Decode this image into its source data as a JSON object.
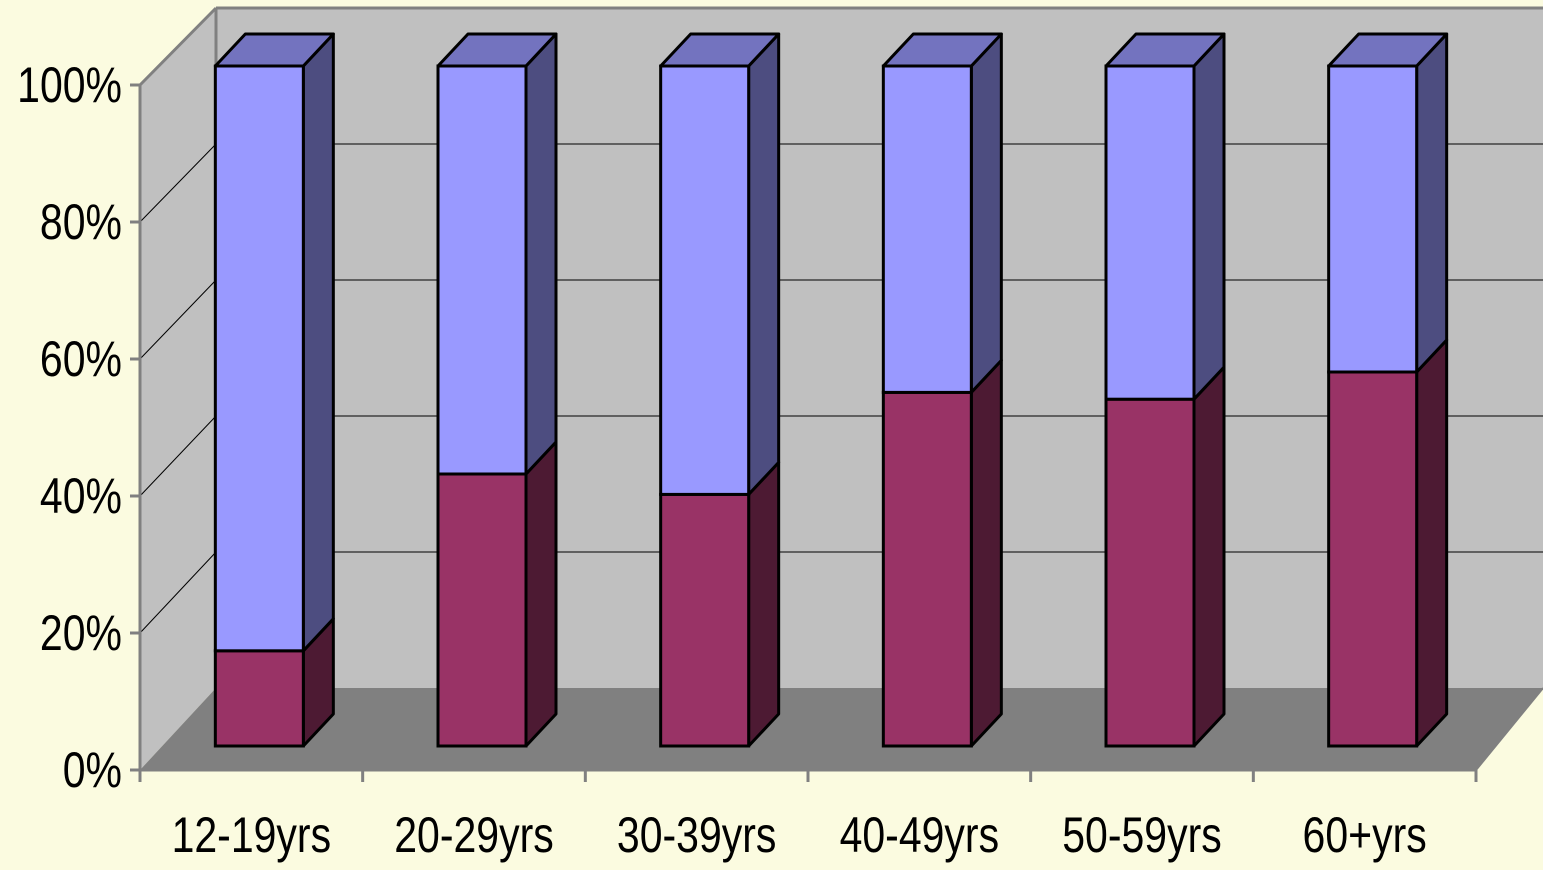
{
  "chart_data": {
    "type": "bar",
    "stacked": true,
    "percent_stacked": true,
    "three_d": true,
    "title": "",
    "xlabel": "",
    "ylabel": "",
    "ylim": [
      0,
      100
    ],
    "y_ticks": [
      "0%",
      "20%",
      "40%",
      "60%",
      "80%",
      "100%"
    ],
    "categories": [
      "12-19yrs",
      "20-29yrs",
      "30-39yrs",
      "40-49yrs",
      "50-59yrs",
      "60+yrs"
    ],
    "series": [
      {
        "values": [
          14,
          40,
          37,
          52,
          51,
          55
        ],
        "color": "#993366"
      },
      {
        "values": [
          86,
          60,
          63,
          48,
          49,
          45
        ],
        "color": "#9999FF"
      }
    ],
    "grid": true,
    "legend": "none",
    "colors": {
      "background": "#FBFBE0",
      "wall": "#C0C0C0",
      "floor": "#808080"
    }
  }
}
